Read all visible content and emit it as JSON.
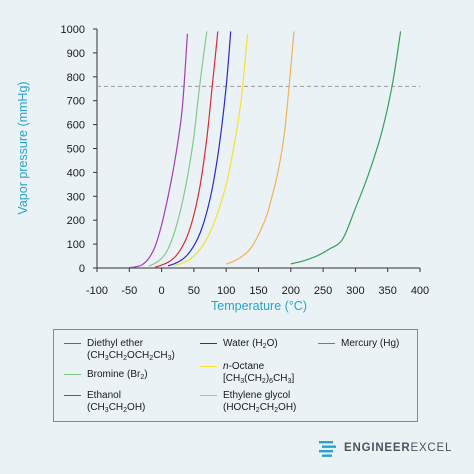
{
  "chart_data": {
    "type": "line",
    "title": "",
    "xlabel": "Temperature (°C)",
    "ylabel": "Vapor pressure (mmHg)",
    "xlim": [
      -100,
      400
    ],
    "ylim": [
      0,
      1000
    ],
    "xticks": [
      -100,
      -50,
      0,
      50,
      100,
      150,
      200,
      250,
      300,
      350,
      400
    ],
    "yticks": [
      0,
      100,
      200,
      300,
      400,
      500,
      600,
      700,
      800,
      900,
      1000
    ],
    "reference_line": {
      "y": 760,
      "style": "dashed",
      "color": "#9a9a9a"
    },
    "grid": false,
    "legend_position": "bottom",
    "series": [
      {
        "name": "Diethyl ether",
        "formula": "(CH3CH2OCH2CH3)",
        "color": "#a23db5",
        "x": [
          -50,
          -40,
          -30,
          -20,
          -10,
          0,
          10,
          20,
          30,
          34.6,
          40
        ],
        "y": [
          2,
          5,
          14,
          40,
          90,
          180,
          300,
          440,
          620,
          760,
          980
        ]
      },
      {
        "name": "Bromine",
        "formula": "(Br2)",
        "color": "#82c98a",
        "x": [
          -20,
          -10,
          0,
          10,
          20,
          30,
          40,
          50,
          58.8,
          70
        ],
        "y": [
          8,
          20,
          40,
          80,
          150,
          250,
          380,
          550,
          760,
          990
        ]
      },
      {
        "name": "Ethanol",
        "formula": "(CH3CH2OH)",
        "color": "#d42e3b",
        "x": [
          -10,
          0,
          10,
          20,
          30,
          40,
          50,
          60,
          70,
          78.4,
          87
        ],
        "y": [
          3,
          12,
          24,
          44,
          80,
          135,
          222,
          352,
          542,
          760,
          990
        ]
      },
      {
        "name": "Water",
        "formula": "(H2O)",
        "color": "#2b2bbf",
        "x": [
          10,
          20,
          30,
          40,
          50,
          60,
          70,
          80,
          90,
          100,
          107
        ],
        "y": [
          9,
          18,
          32,
          55,
          93,
          149,
          234,
          355,
          526,
          760,
          990
        ]
      },
      {
        "name": "n-Octane",
        "formula": "[CH3(CH2)6CH3]",
        "color": "#f2e232",
        "x": [
          20,
          40,
          60,
          80,
          100,
          110,
          120,
          125.6,
          133
        ],
        "y": [
          10,
          30,
          80,
          180,
          350,
          480,
          640,
          760,
          980
        ]
      },
      {
        "name": "Ethylene glycol",
        "formula": "(HOCH2CH2OH)",
        "color": "#f0b259",
        "x": [
          100,
          120,
          140,
          160,
          170,
          180,
          190,
          197.3,
          205
        ],
        "y": [
          16,
          40,
          90,
          200,
          290,
          400,
          560,
          760,
          990
        ]
      },
      {
        "name": "Mercury",
        "formula": "(Hg)",
        "color": "#3aa05b",
        "x": [
          200,
          220,
          240,
          260,
          280,
          300,
          320,
          340,
          356.7,
          370
        ],
        "y": [
          17,
          30,
          50,
          80,
          120,
          250,
          390,
          560,
          760,
          990
        ]
      }
    ]
  },
  "brand": {
    "bold": "ENGINEER",
    "light": "EXCEL"
  }
}
